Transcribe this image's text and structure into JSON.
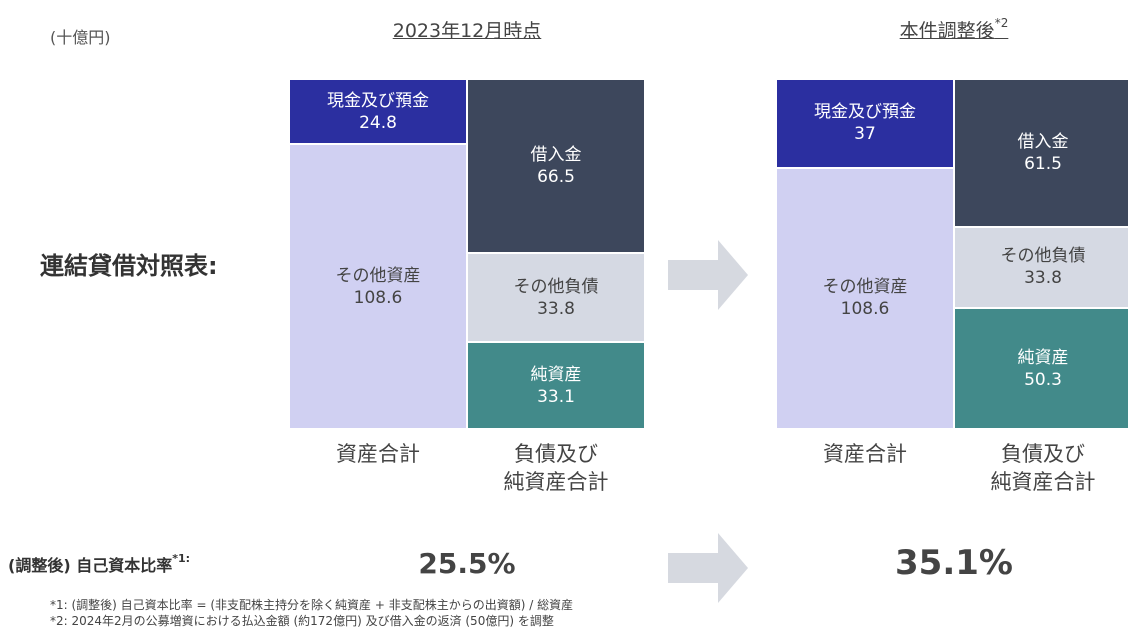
{
  "unit": "(十億円)",
  "row_label": "連結貸借対照表:",
  "ratio_label": "(調整後) 自己資本比率",
  "ratio_note": "*1:",
  "chart_data": [
    {
      "type": "stacked_bar",
      "title": "2023年12月時点",
      "categories": [
        "資産合計",
        "負債及び\n純資産合計"
      ],
      "series": [
        {
          "name": "現金及び預金",
          "color": "#2b2fa0",
          "values": [
            24.8,
            null
          ]
        },
        {
          "name": "その他資産",
          "color": "#d0d0f2",
          "values": [
            108.6,
            null
          ]
        },
        {
          "name": "借入金",
          "color": "#3d475c",
          "values": [
            null,
            66.5
          ]
        },
        {
          "name": "その他負債",
          "color": "#d5d9e3",
          "values": [
            null,
            33.8
          ]
        },
        {
          "name": "純資産",
          "color": "#428a8a",
          "values": [
            null,
            33.1
          ]
        }
      ],
      "ratio": 25.5,
      "ratio_value_label": "25.5%"
    },
    {
      "type": "stacked_bar",
      "title": "本件調整後",
      "title_note": "*2",
      "categories": [
        "資産合計",
        "負債及び\n純資産合計"
      ],
      "series": [
        {
          "name": "現金及び預金",
          "color": "#2b2fa0",
          "values": [
            37.0,
            null
          ]
        },
        {
          "name": "その他資産",
          "color": "#d0d0f2",
          "values": [
            108.6,
            null
          ]
        },
        {
          "name": "借入金",
          "color": "#3d475c",
          "values": [
            null,
            61.5
          ]
        },
        {
          "name": "その他負債",
          "color": "#d5d9e3",
          "values": [
            null,
            33.8
          ]
        },
        {
          "name": "純資産",
          "color": "#428a8a",
          "values": [
            null,
            50.3
          ]
        }
      ],
      "ratio": 35.1,
      "ratio_value_label": "35.1%"
    }
  ],
  "footnotes": [
    "*1: (調整後) 自己資本比率 = (非支配株主持分を除く純資産 + 非支配株主からの出資額) / 総資産",
    "*2: 2024年2月の公募増資における払込金額 (約172億円) 及び借入金の返済 (50億円) を調整"
  ]
}
